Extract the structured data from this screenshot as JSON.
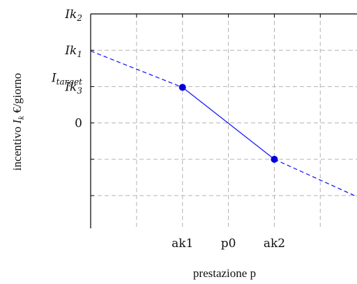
{
  "chart_data": {
    "type": "line",
    "title": "",
    "xlabel": "prestazione p",
    "ylabel_parts": {
      "before": "incentivo ",
      "symbol": "I",
      "subscript": "k",
      "after": " €/giorno"
    },
    "x_ticks": [
      {
        "label": "",
        "value": 1
      },
      {
        "label": "ak1",
        "value": 2
      },
      {
        "label": "p0",
        "value": 3
      },
      {
        "label": "ak2",
        "value": 4
      },
      {
        "label": "",
        "value": 5
      }
    ],
    "y_ticks": [
      {
        "label": "",
        "sub": "",
        "value": -2
      },
      {
        "label": "",
        "sub": "",
        "value": -1
      },
      {
        "label": "0",
        "sub": "",
        "value": 0
      },
      {
        "label": "Ik",
        "sub": "3",
        "value": 1
      },
      {
        "label": "Ik",
        "sub": "1",
        "value": 2
      },
      {
        "label": "Ik",
        "sub": "2",
        "value": 3
      }
    ],
    "extra_y_labels": [
      {
        "label": "I",
        "sub": "target",
        "value": 1.25
      }
    ],
    "xlim": [
      0,
      5.8
    ],
    "ylim": [
      -2.9,
      3.0
    ],
    "grid": true,
    "series": [
      {
        "style": "dashed",
        "points": [
          [
            0,
            1.98
          ],
          [
            2,
            0.98
          ]
        ]
      },
      {
        "style": "solid",
        "points": [
          [
            2,
            0.98
          ],
          [
            4,
            -1.0
          ]
        ]
      },
      {
        "style": "dashed",
        "points": [
          [
            4,
            -1.0
          ],
          [
            5.8,
            -2.03
          ]
        ]
      }
    ],
    "markers": [
      [
        2,
        0.98
      ],
      [
        4,
        -1.0
      ]
    ],
    "colors": {
      "line": "#1a1aff",
      "marker": "#0000dd",
      "grid": "#b3b3b3",
      "axis": "#000000"
    }
  }
}
